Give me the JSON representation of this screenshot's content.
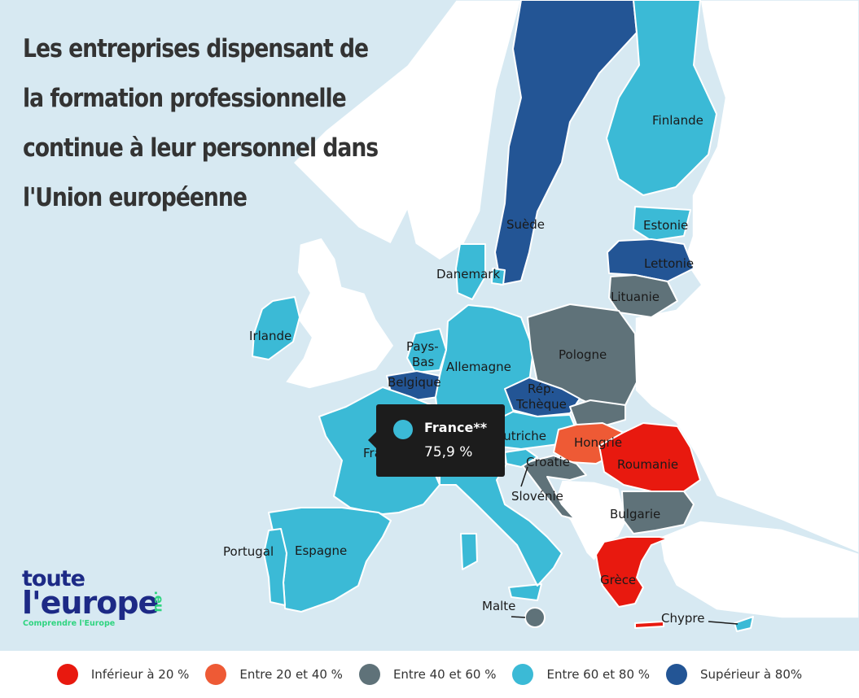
{
  "title": "Les entreprises dispensant de la formation professionnelle continue à leur personnel dans l'Union européenne",
  "colors": {
    "sea": "#d7e9f2",
    "non_member": "#ffffff",
    "lt20": "#e8190f",
    "20_40": "#ee5a35",
    "40_60": "#5f7279",
    "60_80": "#3bbad6",
    "gt80": "#235595"
  },
  "countries": [
    {
      "id": "suede",
      "name": "Suède",
      "bucket": "gt80"
    },
    {
      "id": "finlande",
      "name": "Finlande",
      "bucket": "60_80"
    },
    {
      "id": "estonie",
      "name": "Estonie",
      "bucket": "60_80"
    },
    {
      "id": "lettonie",
      "name": "Lettonie",
      "bucket": "gt80"
    },
    {
      "id": "lituanie",
      "name": "Lituanie",
      "bucket": "40_60"
    },
    {
      "id": "danemark",
      "name": "Danemark",
      "bucket": "60_80"
    },
    {
      "id": "irlande",
      "name": "Irlande",
      "bucket": "60_80"
    },
    {
      "id": "pays-bas",
      "name": "Pays-Bas",
      "bucket": "60_80"
    },
    {
      "id": "belgique",
      "name": "Belgique",
      "bucket": "gt80"
    },
    {
      "id": "allemagne",
      "name": "Allemagne",
      "bucket": "60_80"
    },
    {
      "id": "pologne",
      "name": "Pologne",
      "bucket": "40_60"
    },
    {
      "id": "rep-tcheque",
      "name": "Rép. Tchèque",
      "bucket": "gt80"
    },
    {
      "id": "slovaquie",
      "name": "",
      "bucket": "40_60"
    },
    {
      "id": "autriche",
      "name": "Autriche",
      "bucket": "60_80"
    },
    {
      "id": "hongrie",
      "name": "Hongrie",
      "bucket": "20_40"
    },
    {
      "id": "roumanie",
      "name": "Roumanie",
      "bucket": "lt20"
    },
    {
      "id": "bulgarie",
      "name": "Bulgarie",
      "bucket": "40_60"
    },
    {
      "id": "croatie",
      "name": "Croatie",
      "bucket": "40_60"
    },
    {
      "id": "slovenie",
      "name": "Slovénie",
      "bucket": "60_80"
    },
    {
      "id": "france",
      "name": "France",
      "bucket": "60_80"
    },
    {
      "id": "italie",
      "name": "",
      "bucket": "60_80"
    },
    {
      "id": "espagne",
      "name": "Espagne",
      "bucket": "60_80"
    },
    {
      "id": "portugal",
      "name": "Portugal",
      "bucket": "60_80"
    },
    {
      "id": "grece",
      "name": "Grèce",
      "bucket": "lt20"
    },
    {
      "id": "malte",
      "name": "Malte",
      "bucket": "40_60"
    },
    {
      "id": "chypre",
      "name": "Chypre",
      "bucket": "60_80"
    }
  ],
  "tooltip": {
    "name": "France**",
    "value": "75,9 %",
    "bucket": "60_80"
  },
  "logo": {
    "line1": "toute",
    "line2": "l'europe",
    "ext": ".eu",
    "tagline": "Comprendre l'Europe"
  },
  "legend": [
    {
      "label": "Inférieur à 20 %",
      "bucket": "lt20"
    },
    {
      "label": "Entre 20 et 40 %",
      "bucket": "20_40"
    },
    {
      "label": "Entre 40 et 60 %",
      "bucket": "40_60"
    },
    {
      "label": "Entre 60 et 80 %",
      "bucket": "60_80"
    },
    {
      "label": "Supérieur à 80%",
      "bucket": "gt80"
    }
  ]
}
